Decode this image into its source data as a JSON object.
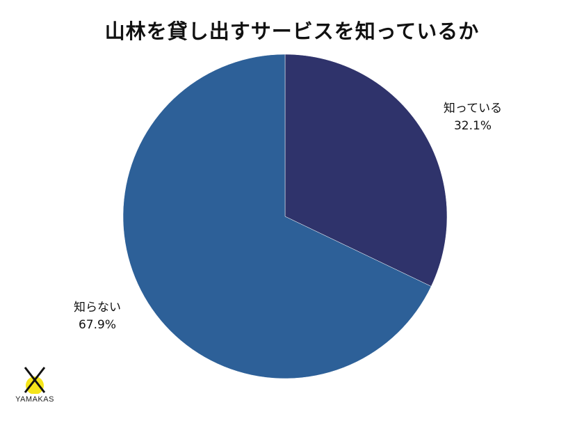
{
  "chart_data": {
    "type": "pie",
    "title": "山林を貸し出すサービスを知っているか",
    "slices": [
      {
        "label": "知っている",
        "value": 32.1,
        "value_label": "32.1%",
        "color": "#2f336b"
      },
      {
        "label": "知らない",
        "value": 67.9,
        "value_label": "67.9%",
        "color": "#2d6098"
      }
    ],
    "start": "12 o'clock",
    "direction": "clockwise"
  },
  "logo": {
    "text": "YAMAKAS",
    "accent_color": "#f5e51b"
  }
}
